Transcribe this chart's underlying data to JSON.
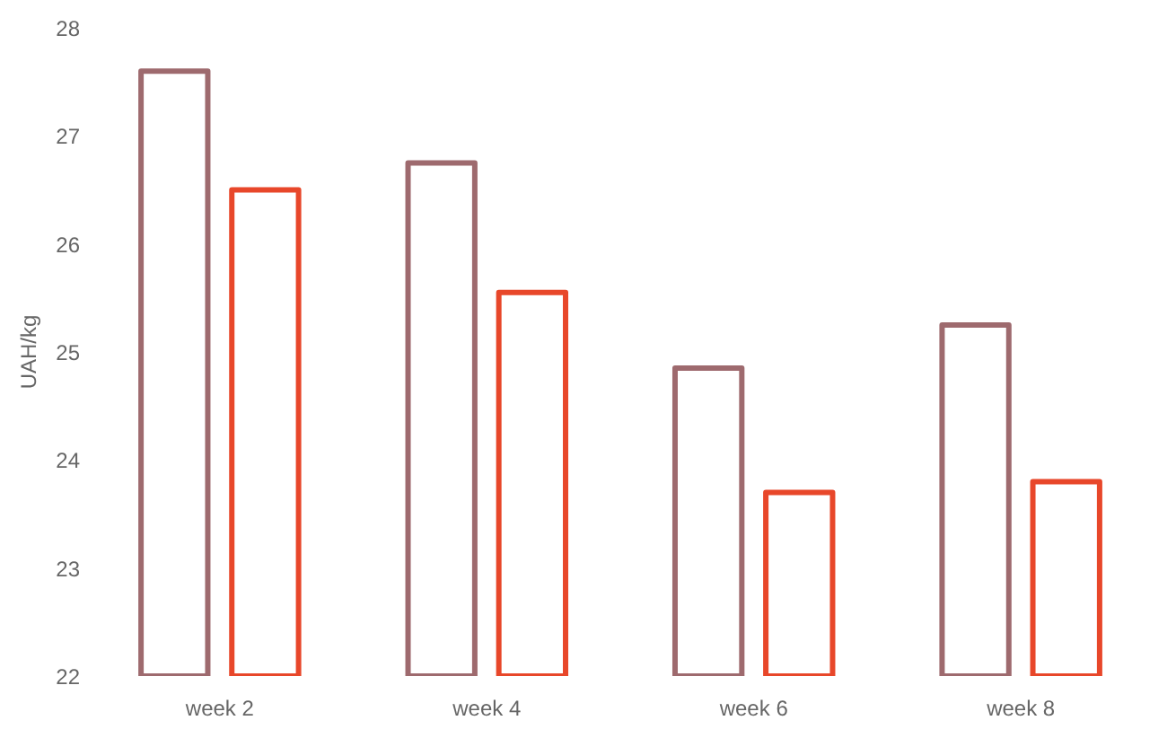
{
  "chart_data": {
    "type": "bar",
    "ylabel": "UAH/kg",
    "categories": [
      "week 2",
      "week 4",
      "week 6",
      "week 8"
    ],
    "series": [
      {
        "color": "#9e6a6e",
        "values": [
          27.6,
          26.75,
          24.85,
          25.25
        ]
      },
      {
        "color": "#e8472a",
        "values": [
          26.5,
          25.55,
          23.7,
          23.8
        ]
      }
    ],
    "ylim": [
      22,
      28
    ],
    "yticks": [
      22,
      23,
      24,
      25,
      26,
      27,
      28
    ],
    "grid": false
  }
}
